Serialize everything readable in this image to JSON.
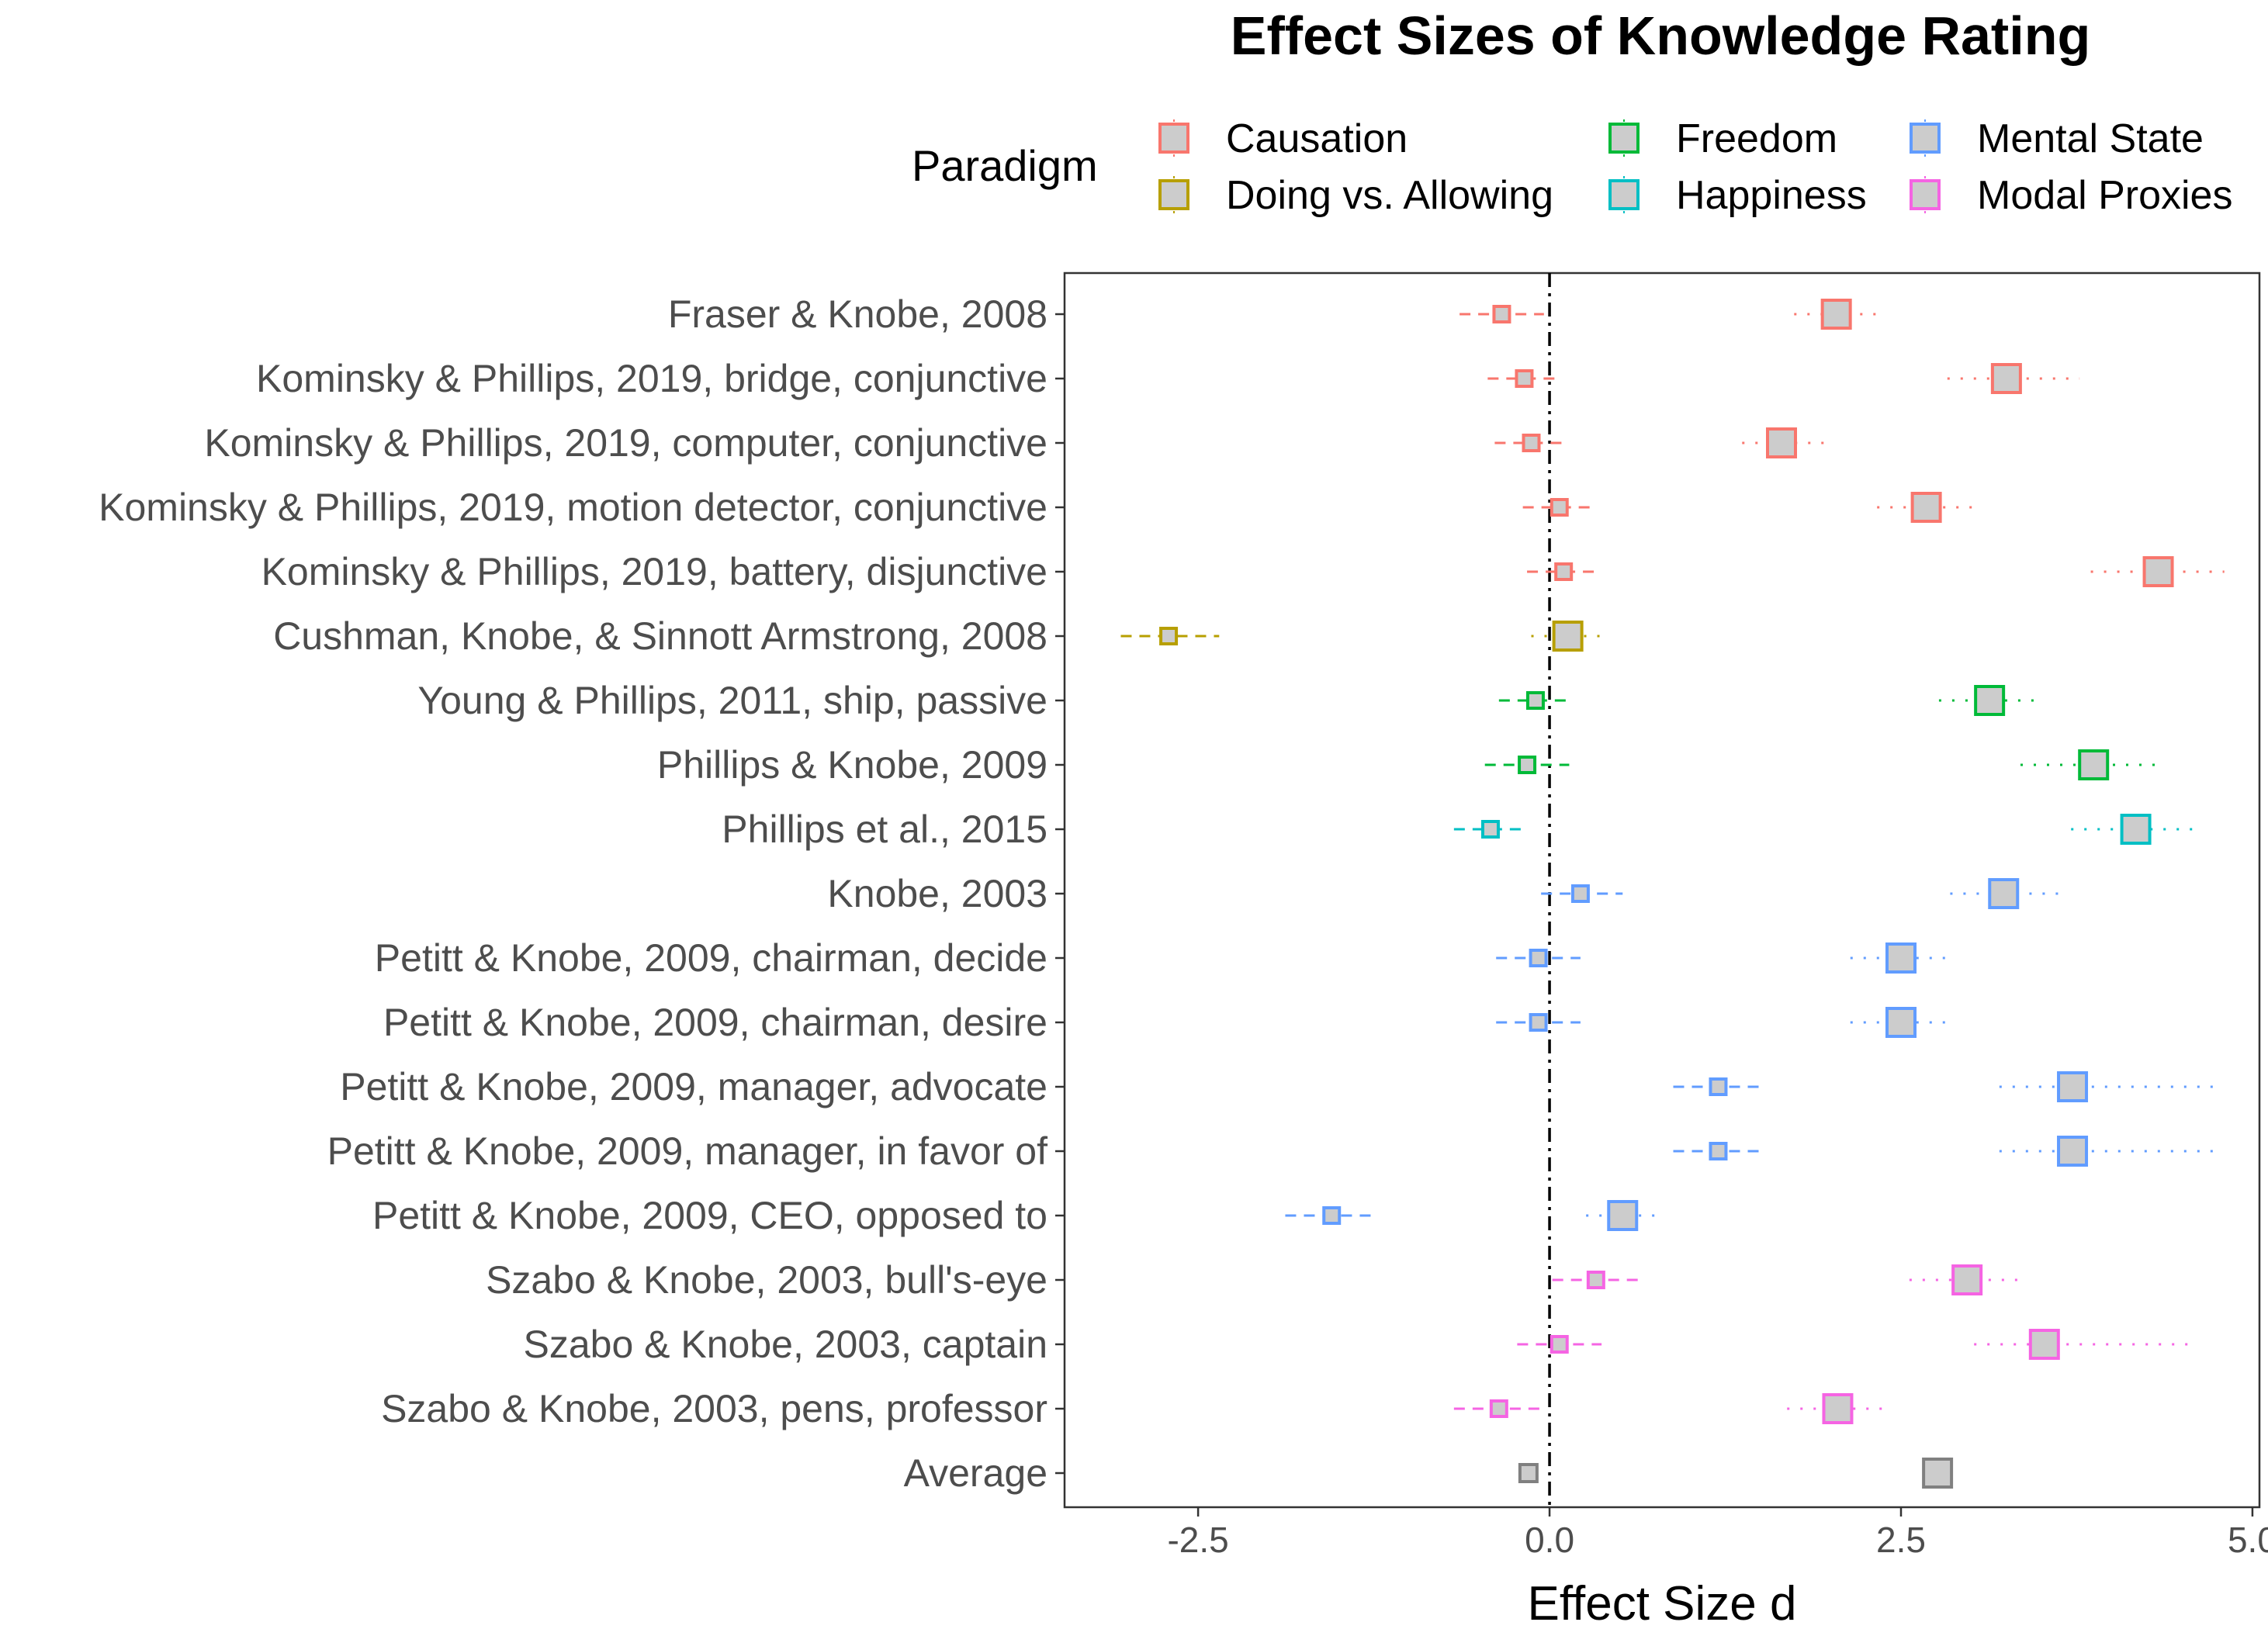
{
  "chart_data": {
    "type": "scatter",
    "title": "Effect Sizes of Knowledge Rating",
    "xlabel": "Effect Size d",
    "ylabel": "",
    "xlim": [
      -3.45,
      5.05
    ],
    "x_ticks": [
      -2.5,
      0.0,
      2.5,
      5.0
    ],
    "x_tick_labels": [
      "-2.5",
      "0.0",
      "2.5",
      "5.0"
    ],
    "reference_line": 0,
    "grid": false,
    "legend": {
      "title": "Paradigm",
      "position": "top",
      "entries": [
        {
          "name": "Causation",
          "color": "#F8766D"
        },
        {
          "name": "Doing vs. Allowing",
          "color": "#B79F00"
        },
        {
          "name": "Freedom",
          "color": "#00BA38"
        },
        {
          "name": "Happiness",
          "color": "#00BFC4"
        },
        {
          "name": "Mental State",
          "color": "#619CFF"
        },
        {
          "name": "Modal Proxies",
          "color": "#F564E3"
        }
      ]
    },
    "series": [
      {
        "name": "Causation",
        "color": "#F8766D"
      },
      {
        "name": "Doing vs. Allowing",
        "color": "#B79F00"
      },
      {
        "name": "Freedom",
        "color": "#00BA38"
      },
      {
        "name": "Happiness",
        "color": "#00BFC4"
      },
      {
        "name": "Mental State",
        "color": "#619CFF"
      },
      {
        "name": "Modal Proxies",
        "color": "#F564E3"
      }
    ],
    "average_color": "#808080",
    "rows": [
      {
        "label": "Fraser & Knobe, 2008",
        "paradigm": "Causation",
        "small": {
          "d": -0.34,
          "lo": -0.64,
          "hi": -0.04
        },
        "large": {
          "d": 2.04,
          "lo": 1.74,
          "hi": 2.34
        }
      },
      {
        "label": "Kominsky & Phillips, 2019, bridge, conjunctive",
        "paradigm": "Causation",
        "small": {
          "d": -0.18,
          "lo": -0.44,
          "hi": 0.08
        },
        "large": {
          "d": 3.25,
          "lo": 2.83,
          "hi": 3.77
        }
      },
      {
        "label": "Kominsky & Phillips, 2019, computer, conjunctive",
        "paradigm": "Causation",
        "small": {
          "d": -0.13,
          "lo": -0.39,
          "hi": 0.13
        },
        "large": {
          "d": 1.65,
          "lo": 1.37,
          "hi": 1.95
        }
      },
      {
        "label": "Kominsky & Phillips, 2019, motion detector, conjunctive",
        "paradigm": "Causation",
        "small": {
          "d": 0.07,
          "lo": -0.19,
          "hi": 0.33
        },
        "large": {
          "d": 2.68,
          "lo": 2.33,
          "hi": 3.05
        }
      },
      {
        "label": "Kominsky & Phillips, 2019, battery, disjunctive",
        "paradigm": "Causation",
        "small": {
          "d": 0.1,
          "lo": -0.16,
          "hi": 0.36
        },
        "large": {
          "d": 4.33,
          "lo": 3.85,
          "hi": 4.8
        }
      },
      {
        "label": "Cushman, Knobe, & Sinnott Armstrong, 2008",
        "paradigm": "Doing vs. Allowing",
        "small": {
          "d": -2.71,
          "lo": -3.05,
          "hi": -2.35
        },
        "large": {
          "d": 0.13,
          "lo": -0.13,
          "hi": 0.39
        }
      },
      {
        "label": "Young & Phillips, 2011, ship, passive",
        "paradigm": "Freedom",
        "small": {
          "d": -0.1,
          "lo": -0.36,
          "hi": 0.16
        },
        "large": {
          "d": 3.13,
          "lo": 2.77,
          "hi": 3.51
        }
      },
      {
        "label": "Phillips & Knobe, 2009",
        "paradigm": "Freedom",
        "small": {
          "d": -0.16,
          "lo": -0.46,
          "hi": 0.14
        },
        "large": {
          "d": 3.87,
          "lo": 3.35,
          "hi": 4.37
        }
      },
      {
        "label": "Phillips et al., 2015",
        "paradigm": "Happiness",
        "small": {
          "d": -0.42,
          "lo": -0.68,
          "hi": -0.16
        },
        "large": {
          "d": 4.17,
          "lo": 3.71,
          "hi": 4.63
        }
      },
      {
        "label": "Knobe, 2003",
        "paradigm": "Mental State",
        "small": {
          "d": 0.22,
          "lo": -0.06,
          "hi": 0.52
        },
        "large": {
          "d": 3.23,
          "lo": 2.85,
          "hi": 3.65
        }
      },
      {
        "label": "Petitt & Knobe, 2009, chairman, decide",
        "paradigm": "Mental State",
        "small": {
          "d": -0.08,
          "lo": -0.38,
          "hi": 0.22
        },
        "large": {
          "d": 2.5,
          "lo": 2.14,
          "hi": 2.88
        }
      },
      {
        "label": "Petitt & Knobe, 2009, chairman, desire",
        "paradigm": "Mental State",
        "small": {
          "d": -0.08,
          "lo": -0.38,
          "hi": 0.22
        },
        "large": {
          "d": 2.5,
          "lo": 2.14,
          "hi": 2.88
        }
      },
      {
        "label": "Petitt & Knobe, 2009, manager, advocate",
        "paradigm": "Mental State",
        "small": {
          "d": 1.2,
          "lo": 0.88,
          "hi": 1.52
        },
        "large": {
          "d": 3.72,
          "lo": 3.2,
          "hi": 4.76
        }
      },
      {
        "label": "Petitt & Knobe, 2009, manager, in favor of",
        "paradigm": "Mental State",
        "small": {
          "d": 1.2,
          "lo": 0.88,
          "hi": 1.52
        },
        "large": {
          "d": 3.72,
          "lo": 3.2,
          "hi": 4.76
        }
      },
      {
        "label": "Petitt & Knobe, 2009, CEO, opposed to",
        "paradigm": "Mental State",
        "small": {
          "d": -1.55,
          "lo": -1.88,
          "hi": -1.22
        },
        "large": {
          "d": 0.52,
          "lo": 0.26,
          "hi": 0.8
        }
      },
      {
        "label": "Szabo & Knobe, 2003, bull's-eye",
        "paradigm": "Modal Proxies",
        "small": {
          "d": 0.33,
          "lo": 0.02,
          "hi": 0.64
        },
        "large": {
          "d": 2.97,
          "lo": 2.56,
          "hi": 3.39
        }
      },
      {
        "label": "Szabo & Knobe, 2003, captain",
        "paradigm": "Modal Proxies",
        "small": {
          "d": 0.07,
          "lo": -0.23,
          "hi": 0.37
        },
        "large": {
          "d": 3.52,
          "lo": 3.02,
          "hi": 4.6
        }
      },
      {
        "label": "Szabo & Knobe, 2003, pens, professor",
        "paradigm": "Modal Proxies",
        "small": {
          "d": -0.36,
          "lo": -0.68,
          "hi": -0.04
        },
        "large": {
          "d": 2.05,
          "lo": 1.69,
          "hi": 2.43
        }
      },
      {
        "label": "Average",
        "paradigm": "Average",
        "small": {
          "d": -0.15,
          "lo": null,
          "hi": null
        },
        "large": {
          "d": 2.76,
          "lo": null,
          "hi": null
        }
      }
    ]
  }
}
